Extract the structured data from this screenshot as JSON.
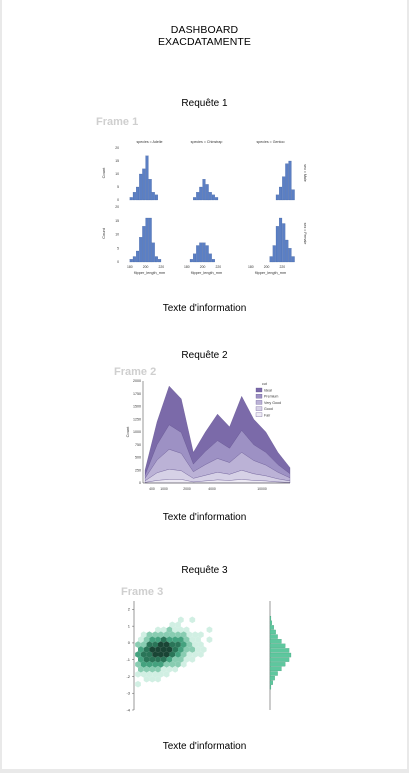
{
  "dashboard": {
    "title_line1": "DASHBOARD",
    "title_line2": "EXACDATAMENTE"
  },
  "sections": [
    {
      "request": "Requête 1",
      "frame": "Frame 1",
      "info": "Texte d'information"
    },
    {
      "request": "Requête 2",
      "frame": "Frame 2",
      "info": "Texte d'information"
    },
    {
      "request": "Requête 3",
      "frame": "Frame 3",
      "info": "Texte d'information"
    }
  ],
  "colors": {
    "frame_label": "#cfcfcf",
    "hist_blue": "#5b7fc4",
    "facet_bg": "#eaeaf2",
    "purple": "#7b6aa9",
    "green": "#3a9d78"
  },
  "chart_data": [
    {
      "type": "bar",
      "title": "",
      "facets": [
        "species = Adelie",
        "species = Chinstrap",
        "species = Gentoo"
      ],
      "rows": [
        "sex = Male",
        "sex = Female"
      ],
      "xlabel": "flipper_length_mm",
      "ylabel": "Count",
      "x_ticks": [
        "180",
        "200",
        "220"
      ],
      "y_ticks_row1": [
        "0",
        "5",
        "10",
        "15",
        "20"
      ],
      "y_ticks_row2": [
        "0",
        "5",
        "10",
        "15",
        "20"
      ],
      "ylim": [
        0,
        20
      ],
      "bins": [
        180,
        184,
        188,
        192,
        196,
        200,
        204,
        208,
        212,
        216,
        220,
        224,
        228,
        232
      ],
      "series": [
        {
          "facet": "species = Adelie",
          "row": "sex = Male",
          "values": [
            1,
            3,
            5,
            10,
            12,
            17,
            8,
            3,
            2,
            0,
            0,
            0,
            0,
            0
          ]
        },
        {
          "facet": "species = Chinstrap",
          "row": "sex = Male",
          "values": [
            0,
            0,
            1,
            3,
            5,
            8,
            6,
            3,
            2,
            1,
            0,
            0,
            0,
            0
          ]
        },
        {
          "facet": "species = Gentoo",
          "row": "sex = Male",
          "values": [
            0,
            0,
            0,
            0,
            0,
            0,
            0,
            0,
            2,
            5,
            9,
            14,
            15,
            4
          ]
        },
        {
          "facet": "species = Adelie",
          "row": "sex = Female",
          "values": [
            1,
            2,
            4,
            9,
            13,
            16,
            16,
            7,
            2,
            1,
            0,
            0,
            0,
            0
          ]
        },
        {
          "facet": "species = Chinstrap",
          "row": "sex = Female",
          "values": [
            0,
            1,
            3,
            6,
            7,
            7,
            6,
            3,
            1,
            0,
            0,
            0,
            0,
            0
          ]
        },
        {
          "facet": "species = Gentoo",
          "row": "sex = Female",
          "values": [
            0,
            0,
            0,
            0,
            0,
            0,
            2,
            6,
            13,
            16,
            14,
            8,
            5,
            2
          ]
        }
      ]
    },
    {
      "type": "area",
      "title": "",
      "xlabel": "",
      "ylabel": "Count",
      "x": [
        1000,
        2000,
        3000,
        4000,
        5000,
        6000,
        7000,
        8000,
        9000,
        10000,
        11000,
        12000,
        13000
      ],
      "x_ticks": [
        "400",
        "1000",
        "2000",
        "4000",
        "10000"
      ],
      "y_ticks": [
        "0",
        "250",
        "500",
        "750",
        "1000",
        "1250",
        "1500",
        "1750",
        "2000"
      ],
      "ylim": [
        0,
        2000
      ],
      "legend_title": "cut",
      "legend_position": "top-right",
      "totals": [
        250,
        1200,
        1900,
        1650,
        600,
        1000,
        1350,
        1100,
        1700,
        1250,
        1000,
        600,
        300
      ],
      "series": [
        {
          "name": "Ideal",
          "values": [
            100,
            450,
            760,
            660,
            230,
            380,
            520,
            420,
            670,
            500,
            400,
            240,
            120
          ]
        },
        {
          "name": "Premium",
          "values": [
            60,
            300,
            480,
            410,
            150,
            260,
            350,
            280,
            430,
            310,
            250,
            150,
            80
          ]
        },
        {
          "name": "Very Good",
          "values": [
            50,
            250,
            390,
            340,
            130,
            210,
            270,
            230,
            350,
            260,
            210,
            130,
            60
          ]
        },
        {
          "name": "Good",
          "values": [
            30,
            150,
            200,
            170,
            70,
            110,
            150,
            120,
            180,
            130,
            100,
            60,
            30
          ]
        },
        {
          "name": "Fair",
          "values": [
            10,
            50,
            70,
            70,
            20,
            40,
            60,
            50,
            70,
            50,
            40,
            20,
            10
          ]
        }
      ]
    },
    {
      "type": "heatmap",
      "title": "",
      "xlabel": "",
      "ylabel": "",
      "y_ticks": [
        "2",
        "1",
        "0",
        "-1",
        "-2",
        "-3",
        "-4"
      ],
      "ylim": [
        -4,
        2.5
      ],
      "marginal_y": [
        1,
        2,
        4,
        6,
        8,
        12,
        16,
        20,
        22,
        20,
        16,
        12,
        8,
        5,
        3,
        1
      ]
    }
  ]
}
